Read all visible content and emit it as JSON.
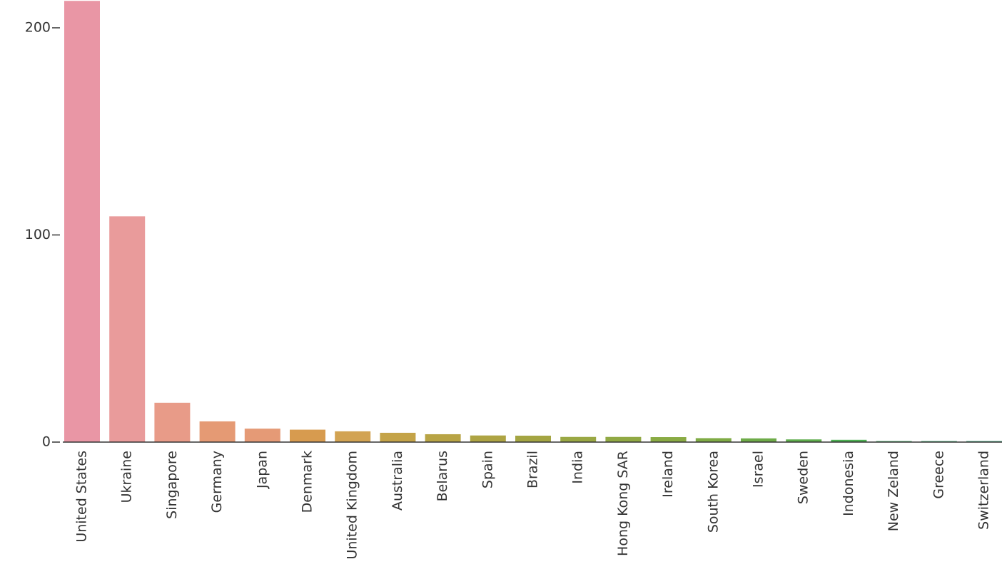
{
  "chart_data": {
    "type": "bar",
    "title": "",
    "xlabel": "",
    "ylabel": "",
    "ylim": [
      0,
      213
    ],
    "yticks": [
      0,
      100,
      200
    ],
    "grid": false,
    "categories": [
      "United States",
      "Ukraine",
      "Singapore",
      "Germany",
      "Japan",
      "Denmark",
      "United Kingdom",
      "Australia",
      "Belarus",
      "Spain",
      "Brazil",
      "India",
      "Hong Kong SAR",
      "Ireland",
      "South Korea",
      "Israel",
      "Sweden",
      "Indonesia",
      "New Zeland",
      "Greece",
      "Switzerland"
    ],
    "values": [
      213,
      109,
      19,
      10,
      6.5,
      6,
      5.2,
      4.5,
      3.8,
      3.2,
      3.1,
      2.5,
      2.5,
      2.4,
      1.9,
      1.8,
      1.3,
      1.1,
      0.5,
      0.5,
      0.5
    ],
    "colors": [
      "#e996a5",
      "#e99b9b",
      "#e89b88",
      "#e59a74",
      "#e59a76",
      "#d79b4f",
      "#d2a352",
      "#c4a348",
      "#b8a445",
      "#aea443",
      "#a4a542",
      "#9aa844",
      "#91a944",
      "#8aab44",
      "#7fab45",
      "#6eab48",
      "#5ead4c",
      "#4caf52",
      "#4aae6b",
      "#48ad7a",
      "#3ea87f"
    ]
  }
}
